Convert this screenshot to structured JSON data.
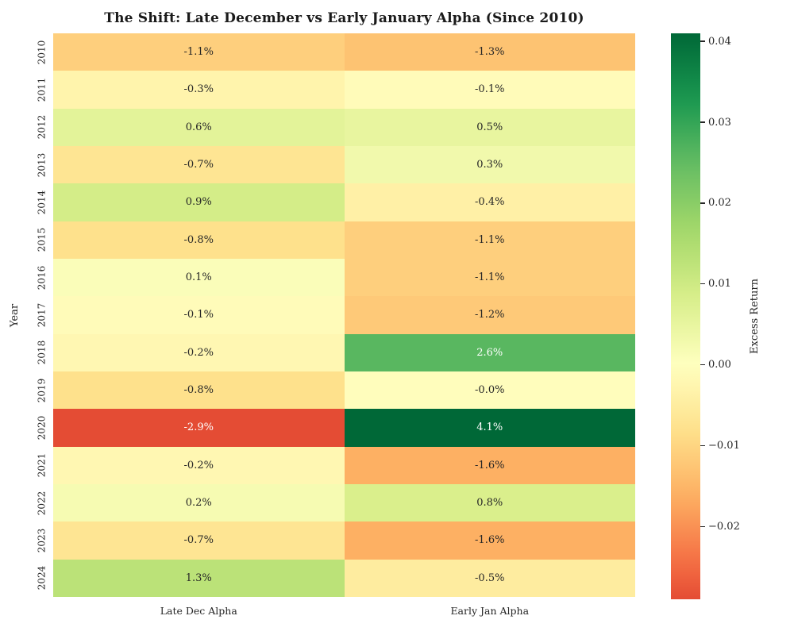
{
  "chart_data": {
    "type": "heatmap",
    "title": "The Shift: Late December vs Early January Alpha (Since 2010)",
    "ylabel": "Year",
    "xlabel": "",
    "columns": [
      "Late Dec Alpha",
      "Early Jan Alpha"
    ],
    "rows": [
      "2010",
      "2011",
      "2012",
      "2013",
      "2014",
      "2015",
      "2016",
      "2017",
      "2018",
      "2019",
      "2020",
      "2021",
      "2022",
      "2023",
      "2024"
    ],
    "values_percent": [
      [
        -1.1,
        -1.3
      ],
      [
        -0.3,
        -0.1
      ],
      [
        0.6,
        0.5
      ],
      [
        -0.7,
        0.3
      ],
      [
        0.9,
        -0.4
      ],
      [
        -0.8,
        -1.1
      ],
      [
        0.1,
        -1.1
      ],
      [
        -0.1,
        -1.2
      ],
      [
        -0.2,
        2.6
      ],
      [
        -0.8,
        -0.04
      ],
      [
        -2.9,
        4.1
      ],
      [
        -0.2,
        -1.6
      ],
      [
        0.2,
        0.8
      ],
      [
        -0.7,
        -1.6
      ],
      [
        1.3,
        -0.5
      ]
    ],
    "cell_labels": [
      [
        "-1.1%",
        "-1.3%"
      ],
      [
        "-0.3%",
        "-0.1%"
      ],
      [
        "0.6%",
        "0.5%"
      ],
      [
        "-0.7%",
        "0.3%"
      ],
      [
        "0.9%",
        "-0.4%"
      ],
      [
        "-0.8%",
        "-1.1%"
      ],
      [
        "0.1%",
        "-1.1%"
      ],
      [
        "-0.1%",
        "-1.2%"
      ],
      [
        "-0.2%",
        "2.6%"
      ],
      [
        "-0.8%",
        "-0.0%"
      ],
      [
        "-2.9%",
        "4.1%"
      ],
      [
        "-0.2%",
        "-1.6%"
      ],
      [
        "0.2%",
        "0.8%"
      ],
      [
        "-0.7%",
        "-1.6%"
      ],
      [
        "1.3%",
        "-0.5%"
      ]
    ],
    "colorbar": {
      "label": "Excess Return",
      "vmin": -0.029,
      "vmax": 0.041,
      "center": 0,
      "colormap": "RdYlGn",
      "colormap_stops": [
        [
          0.0,
          "#a50026"
        ],
        [
          0.1,
          "#d73027"
        ],
        [
          0.2,
          "#f46d43"
        ],
        [
          0.3,
          "#fdae61"
        ],
        [
          0.4,
          "#fee08b"
        ],
        [
          0.5,
          "#ffffbf"
        ],
        [
          0.6,
          "#d9ef8b"
        ],
        [
          0.7,
          "#a6d96a"
        ],
        [
          0.8,
          "#66bd63"
        ],
        [
          0.9,
          "#1a9850"
        ],
        [
          1.0,
          "#006837"
        ]
      ],
      "ticks": [
        {
          "value": 0.04,
          "label": "0.04"
        },
        {
          "value": 0.03,
          "label": "0.03"
        },
        {
          "value": 0.02,
          "label": "0.02"
        },
        {
          "value": 0.01,
          "label": "0.01"
        },
        {
          "value": 0.0,
          "label": "0.00"
        },
        {
          "value": -0.01,
          "label": "−0.01"
        },
        {
          "value": -0.02,
          "label": "−0.02"
        }
      ]
    },
    "text_colors": {
      "dark": "#262626",
      "light": "#ffffff"
    }
  }
}
